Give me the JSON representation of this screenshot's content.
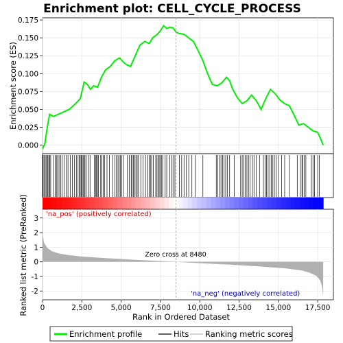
{
  "chart_data": {
    "type": "line",
    "title": "Enrichment plot: CELL_CYCLE_PROCESS",
    "xlabel": "Rank in Ordered Dataset",
    "es_panel": {
      "ylabel": "Enrichment score (ES)",
      "ylim": [
        -0.012,
        0.178
      ],
      "yticks": [
        0.0,
        0.025,
        0.05,
        0.075,
        0.1,
        0.125,
        0.15,
        0.175
      ],
      "ytick_labels": [
        "0.000",
        "0.025",
        "0.050",
        "0.075",
        "0.100",
        "0.125",
        "0.150",
        "0.175"
      ],
      "series": [
        {
          "name": "Enrichment profile",
          "color": "#00ee00",
          "x": [
            0,
            150,
            300,
            450,
            700,
            1000,
            1400,
            1700,
            2100,
            2400,
            2650,
            2850,
            3050,
            3250,
            3500,
            3750,
            4000,
            4300,
            4600,
            4900,
            5100,
            5300,
            5600,
            5900,
            6200,
            6500,
            6800,
            7000,
            7300,
            7500,
            7700,
            7900,
            8100,
            8300,
            8500,
            8700,
            9000,
            9300,
            9600,
            9900,
            10200,
            10500,
            10800,
            11100,
            11400,
            11700,
            11900,
            12100,
            12400,
            12700,
            13000,
            13300,
            13600,
            13900,
            14200,
            14500,
            14800,
            15100,
            15400,
            15700,
            16000,
            16300,
            16600,
            16900,
            17200,
            17500,
            17700,
            17850
          ],
          "y": [
            -0.005,
            0.002,
            0.025,
            0.043,
            0.04,
            0.043,
            0.047,
            0.05,
            0.058,
            0.065,
            0.088,
            0.085,
            0.078,
            0.083,
            0.081,
            0.095,
            0.105,
            0.11,
            0.118,
            0.122,
            0.117,
            0.113,
            0.11,
            0.125,
            0.14,
            0.145,
            0.142,
            0.15,
            0.155,
            0.16,
            0.167,
            0.163,
            0.165,
            0.164,
            0.158,
            0.156,
            0.155,
            0.15,
            0.145,
            0.132,
            0.118,
            0.1,
            0.085,
            0.083,
            0.087,
            0.095,
            0.09,
            0.078,
            0.066,
            0.058,
            0.062,
            0.07,
            0.062,
            0.05,
            0.065,
            0.078,
            0.072,
            0.063,
            0.058,
            0.055,
            0.042,
            0.028,
            0.03,
            0.025,
            0.02,
            0.018,
            0.008,
            0.0
          ]
        }
      ]
    },
    "hits_panel": {
      "name": "Hits",
      "hit_ranks": [
        30,
        90,
        160,
        220,
        280,
        340,
        400,
        460,
        520,
        700,
        820,
        880,
        960,
        1050,
        1150,
        1250,
        1380,
        1500,
        1620,
        1760,
        1900,
        2020,
        2150,
        2260,
        2330,
        2400,
        2460,
        2520,
        2580,
        2640,
        2700,
        2780,
        2900,
        3020,
        3300,
        3380,
        3430,
        3500,
        3560,
        3700,
        3780,
        3860,
        3940,
        4100,
        4250,
        4450,
        4600,
        4700,
        4800,
        4880,
        4960,
        5040,
        5150,
        5400,
        5520,
        5640,
        5700,
        5780,
        5860,
        5940,
        6020,
        6100,
        6250,
        6400,
        6550,
        6700,
        6780,
        6860,
        6940,
        7050,
        7200,
        7280,
        7360,
        7420,
        7480,
        7560,
        7640,
        7800,
        7900,
        8100,
        8200,
        8300,
        8420,
        8700,
        8850,
        9000,
        9150,
        9300,
        9500,
        9700,
        10200,
        11050,
        11150,
        11250,
        11350,
        11450,
        11550,
        11650,
        11750,
        11900,
        12200,
        12600,
        12700,
        12800,
        12900,
        13000,
        13100,
        13200,
        13350,
        13450,
        13600,
        13800,
        14050,
        14150,
        14250,
        14350,
        14450,
        14550,
        14650,
        14750,
        14850,
        15000,
        15200,
        15400,
        15700,
        16200,
        16400,
        16500,
        16550,
        16650,
        16750,
        17100,
        17200,
        17300,
        17500,
        17600
      ]
    },
    "metric_panel": {
      "name": "Ranking metric scores",
      "ylabel": "Ranked list metric (PreRanked)",
      "ylim": [
        -2.6,
        3.6
      ],
      "yticks": [
        -2,
        -1,
        0,
        1,
        2,
        3
      ],
      "ytick_labels": [
        "-2",
        "-1",
        "0",
        "1",
        "2",
        "3"
      ],
      "rank": [
        0,
        30,
        100,
        300,
        600,
        1000,
        1500,
        2500,
        4000,
        6000,
        8480,
        10000,
        12000,
        14000,
        15500,
        16500,
        17000,
        17400,
        17650,
        17780,
        17850
      ],
      "values": [
        3.1,
        1.7,
        1.3,
        0.95,
        0.72,
        0.58,
        0.48,
        0.36,
        0.25,
        0.13,
        0.0,
        -0.09,
        -0.2,
        -0.33,
        -0.45,
        -0.6,
        -0.75,
        -0.95,
        -1.25,
        -1.7,
        -2.4
      ],
      "pos_label": "'na_pos' (positively correlated)",
      "neg_label": "'na_neg' (negatively correlated)",
      "zero_cross_label": "Zero cross at 8480",
      "zero_cross_rank": 8480
    },
    "x_axis": {
      "xlim": [
        0,
        18500
      ],
      "xticks": [
        0,
        2500,
        5000,
        7500,
        10000,
        12500,
        15000,
        17500
      ],
      "xtick_labels": [
        "0",
        "2,500",
        "5,000",
        "7,500",
        "10,000",
        "12,500",
        "15,000",
        "17,500"
      ]
    },
    "legend": {
      "placement": "bottom",
      "entries": [
        {
          "label": "Enrichment profile",
          "color": "#00ee00"
        },
        {
          "label": "Hits",
          "color": "#000000"
        },
        {
          "label": "Ranking metric scores",
          "color": "#bbbbbb"
        }
      ]
    },
    "grid": true,
    "colors": {
      "es_line": "#00ee00",
      "hit_line": "#000000",
      "metric_fill": "#b0b0b0",
      "positive": "#ff0000",
      "negative": "#0000ff",
      "grid": "#e6e6e6",
      "zero_cross": "#999999"
    }
  }
}
